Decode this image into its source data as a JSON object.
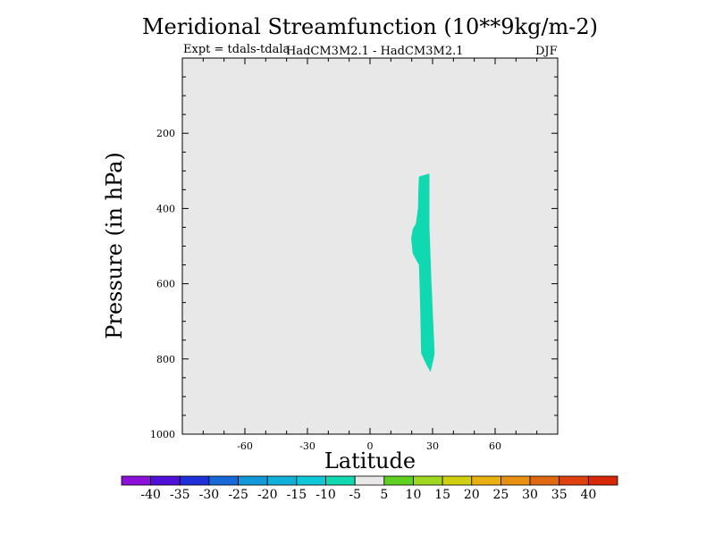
{
  "chart_data": {
    "type": "contour",
    "title": "Meridional Streamfunction (10**9kg/m-2)",
    "subtitle_left": "Expt = tdals-tdala",
    "subtitle_center": "HadCM3M2.1 - HadCM3M2.1",
    "subtitle_right": "DJF",
    "xlabel": "Latitude",
    "ylabel": "Pressure (in hPa)",
    "xlim": [
      -90,
      90
    ],
    "ylim": [
      1000,
      0
    ],
    "x_ticks": [
      -60,
      -30,
      0,
      30,
      60
    ],
    "y_ticks": [
      200,
      400,
      600,
      800,
      1000
    ],
    "background_value_range": [
      -5,
      5
    ],
    "regions": [
      {
        "name": "negative-anomaly",
        "range": [
          -10,
          -5
        ],
        "color": "#10d8b0",
        "outline": [
          [
            23.5,
            315
          ],
          [
            28.5,
            307
          ],
          [
            28.5,
            450
          ],
          [
            29.5,
            600
          ],
          [
            31,
            785
          ],
          [
            30.5,
            800
          ],
          [
            29,
            835
          ],
          [
            27,
            815
          ],
          [
            24.5,
            785
          ],
          [
            24,
            650
          ],
          [
            23.5,
            550
          ],
          [
            20.5,
            520
          ],
          [
            19.7,
            480
          ],
          [
            20.5,
            455
          ],
          [
            22,
            440
          ],
          [
            23,
            400
          ],
          [
            23.2,
            350
          ]
        ]
      }
    ],
    "colorbar": {
      "labels": [
        "-40",
        "-35",
        "-30",
        "-25",
        "-20",
        "-15",
        "-10",
        "-5",
        "5",
        "10",
        "15",
        "20",
        "25",
        "30",
        "35",
        "40"
      ],
      "colors": [
        "#8c10d8",
        "#5010d8",
        "#2030d8",
        "#1868d8",
        "#1098d8",
        "#10b0d8",
        "#10c8d8",
        "#10d8b0",
        "#e8e8e8",
        "#60d020",
        "#a0d820",
        "#d0d010",
        "#e8b010",
        "#e89010",
        "#e06810",
        "#e04010",
        "#d82808"
      ]
    },
    "background_color": "#e8e8e8"
  }
}
